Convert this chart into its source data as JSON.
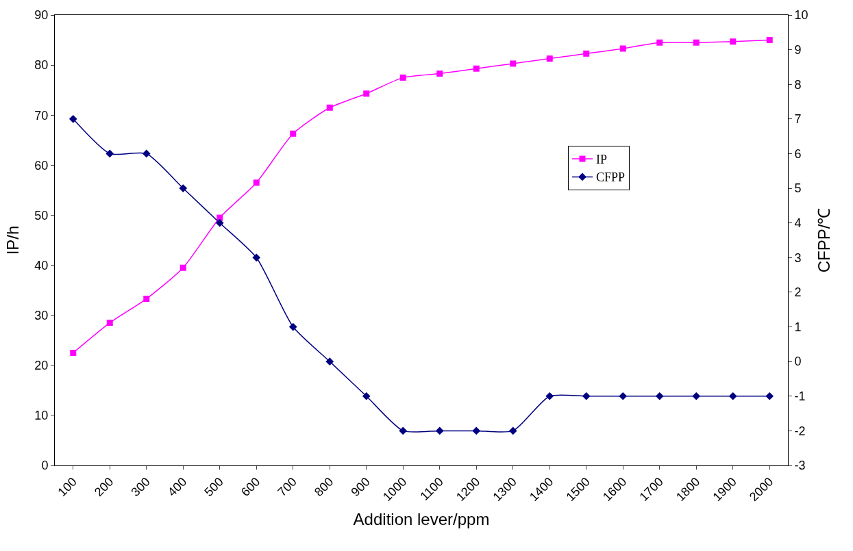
{
  "chart_data": {
    "type": "line",
    "xlabel": "Addition lever/ppm",
    "ylabel": "IP/h",
    "y2label": "CFPP/℃",
    "categories": [
      "100",
      "200",
      "300",
      "400",
      "500",
      "600",
      "700",
      "800",
      "900",
      "1000",
      "1100",
      "1200",
      "1300",
      "1400",
      "1500",
      "1600",
      "1700",
      "1800",
      "1900",
      "2000"
    ],
    "series": [
      {
        "name": "IP",
        "color": "#ff00ff",
        "marker": "square",
        "values": [
          22.5,
          28.5,
          33.3,
          39.5,
          49.5,
          56.5,
          66.3,
          71.5,
          74.3,
          77.5,
          78.3,
          79.3,
          80.3,
          81.3,
          82.3,
          83.3,
          84.5,
          84.5,
          84.7,
          85.0
        ]
      },
      {
        "name": "CFPP",
        "color": "#000080",
        "marker": "diamond",
        "axis": "y2",
        "values": [
          7,
          6,
          6,
          5,
          4,
          3,
          1,
          0,
          -1,
          -2,
          -2,
          -2,
          -2,
          -1,
          -1,
          -1,
          -1,
          -1,
          -1,
          -1
        ]
      }
    ],
    "ylim": [
      0,
      90
    ],
    "yticks": [
      0,
      10,
      20,
      30,
      40,
      50,
      60,
      70,
      80,
      90
    ],
    "y2lim": [
      -3,
      10
    ],
    "y2ticks": [
      -3,
      -2,
      -1,
      0,
      1,
      2,
      3,
      4,
      5,
      6,
      7,
      8,
      9,
      10
    ],
    "legend": "right",
    "line_style": "solid"
  }
}
